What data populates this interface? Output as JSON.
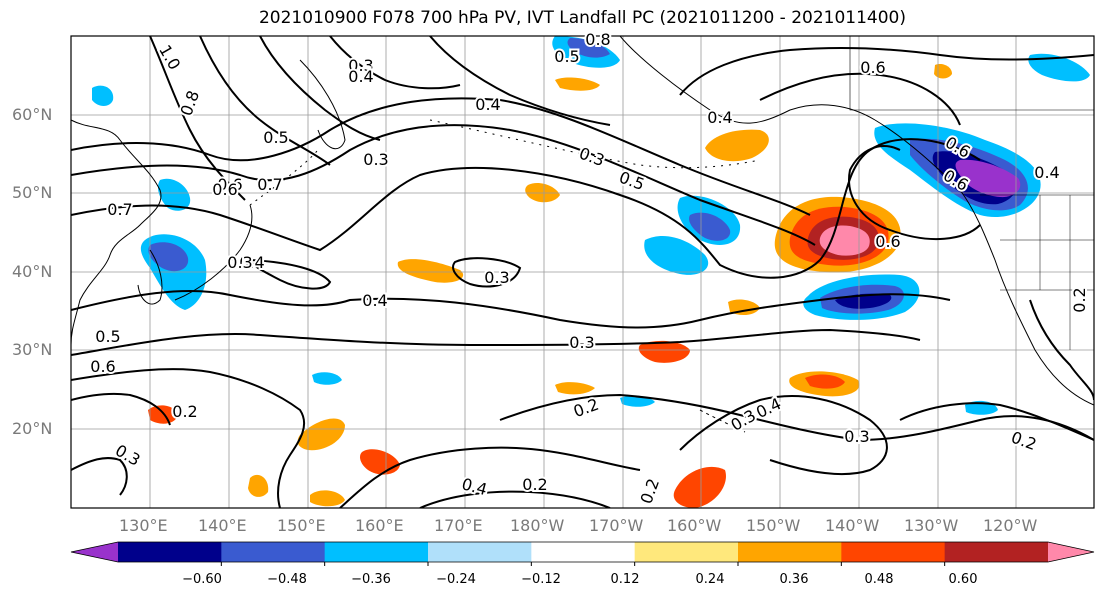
{
  "title": "2021010900 F078 700 hPa PV, IVT Landfall PC (2021011200 - 2021011400)",
  "map": {
    "lat_labels": [
      "60°N",
      "50°N",
      "40°N",
      "30°N",
      "20°N"
    ],
    "lon_labels": [
      "130°E",
      "140°E",
      "150°E",
      "160°E",
      "170°E",
      "180°W",
      "170°W",
      "160°W",
      "150°W",
      "140°W",
      "130°W",
      "120°W"
    ],
    "contour_labels": [
      "0.8",
      "0.6",
      "0.3",
      "0.4",
      "0.5",
      "0.3",
      "0.4",
      "0.3",
      "0.5",
      "0.6",
      "0.7",
      "0.6",
      "0.4",
      "0.4",
      "0.3",
      "0.6",
      "0.6",
      "0.5",
      "0.4",
      "0.4",
      "0.3",
      "0.5",
      "0.6",
      "0.2",
      "0.2",
      "0.3",
      "0.4",
      "0.3",
      "0.2",
      "0.4",
      "0.2",
      "0.2",
      "0.3",
      "0.2",
      "1.0",
      "0.8",
      "0.7",
      "0.6",
      "0.3"
    ]
  },
  "colorbar": {
    "tick_labels": [
      "−0.60",
      "−0.48",
      "−0.36",
      "−0.24",
      "−0.12",
      "0.12",
      "0.24",
      "0.36",
      "0.48",
      "0.60"
    ],
    "colors": [
      "#9932cc",
      "#00008b",
      "#3a5bd0",
      "#00bfff",
      "#b0e0fa",
      "#ffffff",
      "#ffe87c",
      "#ffa500",
      "#ff4500",
      "#b22222",
      "#ff88aa"
    ]
  }
}
